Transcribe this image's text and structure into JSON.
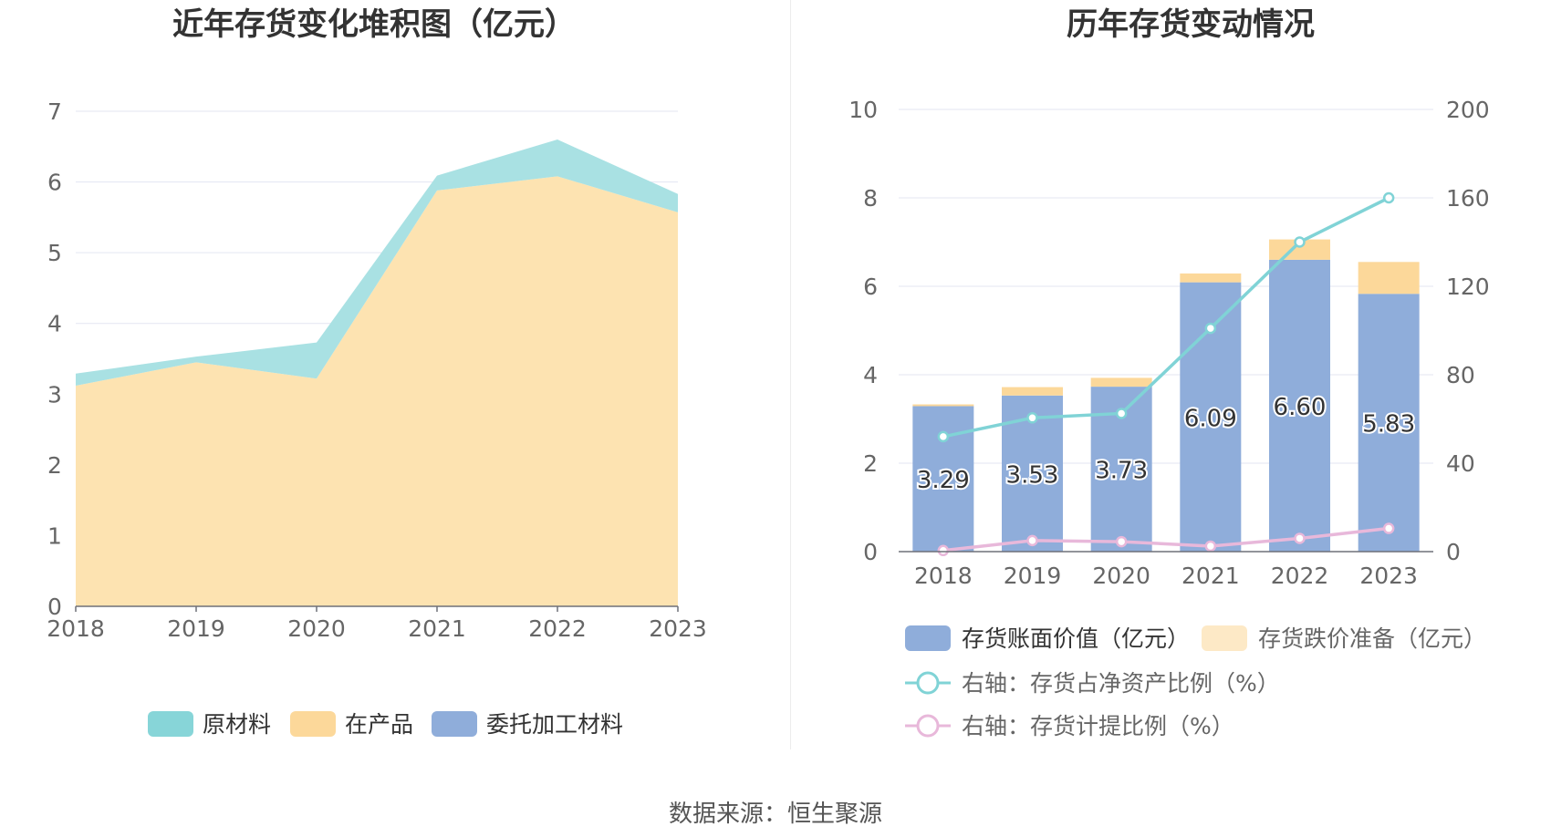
{
  "source_text": "数据来源：恒生聚源",
  "chart_data": [
    {
      "type": "area",
      "title": "近年存货变化堆积图（亿元）",
      "x": [
        "2018",
        "2019",
        "2020",
        "2021",
        "2022",
        "2023"
      ],
      "ylim": [
        0,
        7
      ],
      "yticks": [
        "0",
        "1",
        "2",
        "3",
        "4",
        "5",
        "6",
        "7"
      ],
      "stacked": true,
      "grid": true,
      "legend_position": "bottom",
      "series": [
        {
          "name": "在产品",
          "color": "#fde3b1",
          "values": [
            3.12,
            3.45,
            3.22,
            5.88,
            6.08,
            5.57
          ]
        },
        {
          "name": "原材料",
          "color": "#a9e1e3",
          "values": [
            0.17,
            0.08,
            0.51,
            0.21,
            0.52,
            0.26
          ]
        },
        {
          "name": "委托加工材料",
          "color": "#8fadda",
          "values": [
            0,
            0,
            0,
            0,
            0,
            0
          ]
        }
      ],
      "legend": [
        {
          "name": "原材料",
          "color": "#87d5d8"
        },
        {
          "name": "在产品",
          "color": "#fcd89a"
        },
        {
          "name": "委托加工材料",
          "color": "#8fadda"
        }
      ]
    },
    {
      "type": "bar",
      "title": "历年存货变动情况",
      "categories": [
        "2018",
        "2019",
        "2020",
        "2021",
        "2022",
        "2023"
      ],
      "ylim": [
        0,
        10
      ],
      "yticks": [
        "0",
        "2",
        "4",
        "6",
        "8",
        "10"
      ],
      "y2lim": [
        0,
        200
      ],
      "y2ticks": [
        "0",
        "40",
        "80",
        "120",
        "160",
        "200"
      ],
      "grid": true,
      "legend_position": "bottom",
      "bar_series": [
        {
          "name": "存货账面价值（亿元）",
          "color": "#8fadda",
          "values": [
            3.29,
            3.53,
            3.73,
            6.09,
            6.6,
            5.83
          ],
          "labels": [
            "3.29",
            "3.53",
            "3.73",
            "6.09",
            "6.60",
            "5.83"
          ]
        },
        {
          "name": "存货跌价准备（亿元）",
          "color": "#fcd89a",
          "values": [
            0.04,
            0.19,
            0.2,
            0.2,
            0.46,
            0.72
          ]
        }
      ],
      "line_series": [
        {
          "name": "右轴：存货占净资产比例（%）",
          "color": "#80d3d6",
          "values": [
            52,
            60.5,
            62.5,
            101,
            140,
            160
          ]
        },
        {
          "name": "右轴：存货计提比例（%）",
          "color": "#e8b8da",
          "values": [
            0.5,
            5,
            4.5,
            2.5,
            6,
            10.5
          ]
        }
      ]
    }
  ]
}
